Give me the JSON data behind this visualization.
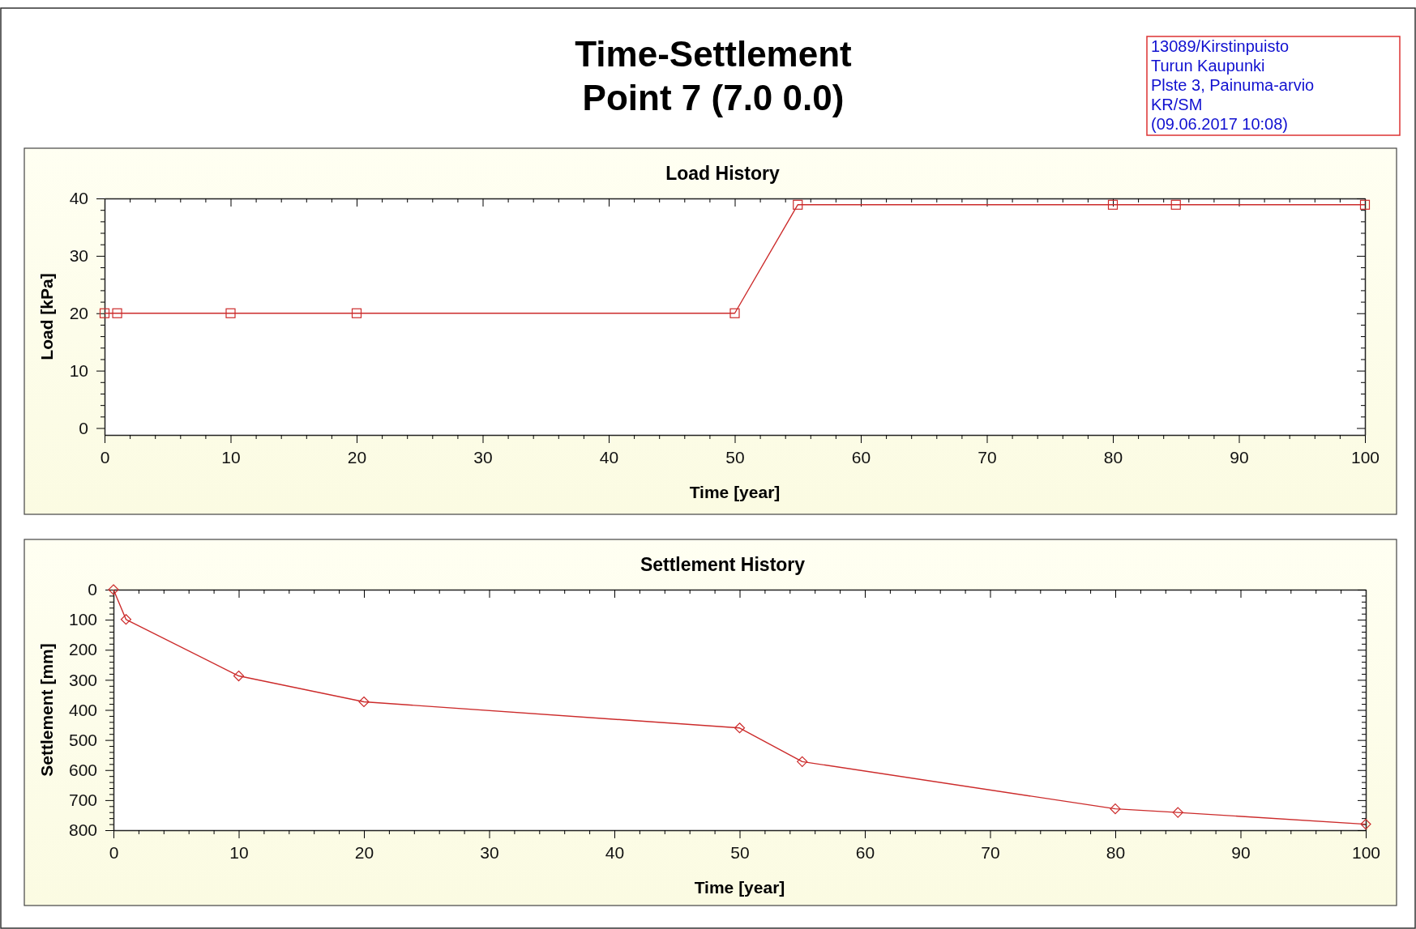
{
  "chart_data": [
    {
      "type": "other",
      "title": "Time-Settlement",
      "subtitle": "Point 7 (7.0 0.0)",
      "annotations": [
        "13089/Kirstinpuisto",
        "Turun Kaupunki",
        "Plste 3, Painuma-arvio",
        "KR/SM",
        "(09.06.2017 10:08)"
      ]
    },
    {
      "type": "line",
      "title": "Load History",
      "xlabel": "Time [year]",
      "ylabel": "Load [kPa]",
      "marker": "square",
      "line_style": "solid",
      "x": [
        0,
        1,
        10,
        20,
        50,
        55,
        80,
        85,
        100
      ],
      "series": [
        {
          "color": "#cc2b2b",
          "values": [
            20,
            20,
            20,
            20,
            20,
            38.9,
            38.9,
            38.9,
            38.9
          ]
        }
      ],
      "xlim": [
        0,
        100
      ],
      "xticks": [
        0,
        {
          "value": 2,
          "label": null
        },
        {
          "value": 4,
          "label": null
        },
        {
          "value": 6,
          "label": null
        },
        {
          "value": 8,
          "label": null
        },
        10,
        {
          "value": 12,
          "label": null
        },
        {
          "value": 14,
          "label": null
        },
        {
          "value": 16,
          "label": null
        },
        {
          "value": 18,
          "label": null
        },
        20,
        {
          "value": 22,
          "label": null
        },
        {
          "value": 24,
          "label": null
        },
        {
          "value": 26,
          "label": null
        },
        {
          "value": 28,
          "label": null
        },
        30,
        {
          "value": 32,
          "label": null
        },
        {
          "value": 34,
          "label": null
        },
        {
          "value": 36,
          "label": null
        },
        {
          "value": 38,
          "label": null
        },
        40,
        {
          "value": 42,
          "label": null
        },
        {
          "value": 44,
          "label": null
        },
        {
          "value": 46,
          "label": null
        },
        {
          "value": 48,
          "label": null
        },
        50,
        {
          "value": 52,
          "label": null
        },
        {
          "value": 54,
          "label": null
        },
        {
          "value": 56,
          "label": null
        },
        {
          "value": 58,
          "label": null
        },
        60,
        {
          "value": 62,
          "label": null
        },
        {
          "value": 64,
          "label": null
        },
        {
          "value": 66,
          "label": null
        },
        {
          "value": 68,
          "label": null
        },
        70,
        {
          "value": 72,
          "label": null
        },
        {
          "value": 74,
          "label": null
        },
        {
          "value": 76,
          "label": null
        },
        {
          "value": 78,
          "label": null
        },
        80,
        {
          "value": 82,
          "label": null
        },
        {
          "value": 84,
          "label": null
        },
        {
          "value": 86,
          "label": null
        },
        {
          "value": 88,
          "label": null
        },
        90,
        {
          "value": 92,
          "label": null
        },
        {
          "value": 94,
          "label": null
        },
        {
          "value": 96,
          "label": null
        },
        {
          "value": 98,
          "label": null
        },
        100
      ],
      "ylim": [
        -1.2,
        40
      ],
      "yticks": [
        0,
        {
          "value": 2,
          "label": null
        },
        {
          "value": 4,
          "label": null
        },
        {
          "value": 6,
          "label": null
        },
        {
          "value": 8,
          "label": null
        },
        10,
        {
          "value": 12,
          "label": null
        },
        {
          "value": 14,
          "label": null
        },
        {
          "value": 16,
          "label": null
        },
        {
          "value": 18,
          "label": null
        },
        20,
        {
          "value": 22,
          "label": null
        },
        {
          "value": 24,
          "label": null
        },
        {
          "value": 26,
          "label": null
        },
        {
          "value": 28,
          "label": null
        },
        30,
        {
          "value": 32,
          "label": null
        },
        {
          "value": 34,
          "label": null
        },
        {
          "value": 36,
          "label": null
        },
        {
          "value": 38,
          "label": null
        },
        40
      ]
    },
    {
      "type": "line",
      "title": "Settlement History",
      "xlabel": "Time [year]",
      "ylabel": "Settlement [mm]",
      "marker": "diamond",
      "line_style": "solid",
      "x": [
        0,
        1,
        10,
        20,
        50,
        55,
        80,
        85,
        100
      ],
      "series": [
        {
          "color": "#cc2b2b",
          "values": [
            0,
            99,
            287,
            373,
            460,
            572,
            729,
            741,
            780
          ]
        }
      ],
      "xlim": [
        0,
        100
      ],
      "xticks": [
        0,
        {
          "value": 2,
          "label": null
        },
        {
          "value": 4,
          "label": null
        },
        {
          "value": 6,
          "label": null
        },
        {
          "value": 8,
          "label": null
        },
        10,
        {
          "value": 12,
          "label": null
        },
        {
          "value": 14,
          "label": null
        },
        {
          "value": 16,
          "label": null
        },
        {
          "value": 18,
          "label": null
        },
        20,
        {
          "value": 22,
          "label": null
        },
        {
          "value": 24,
          "label": null
        },
        {
          "value": 26,
          "label": null
        },
        {
          "value": 28,
          "label": null
        },
        30,
        {
          "value": 32,
          "label": null
        },
        {
          "value": 34,
          "label": null
        },
        {
          "value": 36,
          "label": null
        },
        {
          "value": 38,
          "label": null
        },
        40,
        {
          "value": 42,
          "label": null
        },
        {
          "value": 44,
          "label": null
        },
        {
          "value": 46,
          "label": null
        },
        {
          "value": 48,
          "label": null
        },
        50,
        {
          "value": 52,
          "label": null
        },
        {
          "value": 54,
          "label": null
        },
        {
          "value": 56,
          "label": null
        },
        {
          "value": 58,
          "label": null
        },
        60,
        {
          "value": 62,
          "label": null
        },
        {
          "value": 64,
          "label": null
        },
        {
          "value": 66,
          "label": null
        },
        {
          "value": 68,
          "label": null
        },
        70,
        {
          "value": 72,
          "label": null
        },
        {
          "value": 74,
          "label": null
        },
        {
          "value": 76,
          "label": null
        },
        {
          "value": 78,
          "label": null
        },
        80,
        {
          "value": 82,
          "label": null
        },
        {
          "value": 84,
          "label": null
        },
        {
          "value": 86,
          "label": null
        },
        {
          "value": 88,
          "label": null
        },
        90,
        {
          "value": 92,
          "label": null
        },
        {
          "value": 94,
          "label": null
        },
        {
          "value": 96,
          "label": null
        },
        {
          "value": 98,
          "label": null
        },
        100
      ],
      "ylim": [
        800,
        0
      ],
      "yticks": [
        0,
        {
          "value": 20,
          "label": null
        },
        {
          "value": 40,
          "label": null
        },
        {
          "value": 60,
          "label": null
        },
        {
          "value": 80,
          "label": null
        },
        100,
        {
          "value": 120,
          "label": null
        },
        {
          "value": 140,
          "label": null
        },
        {
          "value": 160,
          "label": null
        },
        {
          "value": 180,
          "label": null
        },
        200,
        {
          "value": 220,
          "label": null
        },
        {
          "value": 240,
          "label": null
        },
        {
          "value": 260,
          "label": null
        },
        {
          "value": 280,
          "label": null
        },
        300,
        {
          "value": 320,
          "label": null
        },
        {
          "value": 340,
          "label": null
        },
        {
          "value": 360,
          "label": null
        },
        {
          "value": 380,
          "label": null
        },
        400,
        {
          "value": 420,
          "label": null
        },
        {
          "value": 440,
          "label": null
        },
        {
          "value": 460,
          "label": null
        },
        {
          "value": 480,
          "label": null
        },
        500,
        {
          "value": 520,
          "label": null
        },
        {
          "value": 540,
          "label": null
        },
        {
          "value": 560,
          "label": null
        },
        {
          "value": 580,
          "label": null
        },
        600,
        {
          "value": 620,
          "label": null
        },
        {
          "value": 640,
          "label": null
        },
        {
          "value": 660,
          "label": null
        },
        {
          "value": 680,
          "label": null
        },
        700,
        {
          "value": 720,
          "label": null
        },
        {
          "value": 740,
          "label": null
        },
        {
          "value": 760,
          "label": null
        },
        {
          "value": 780,
          "label": null
        },
        800
      ]
    }
  ]
}
